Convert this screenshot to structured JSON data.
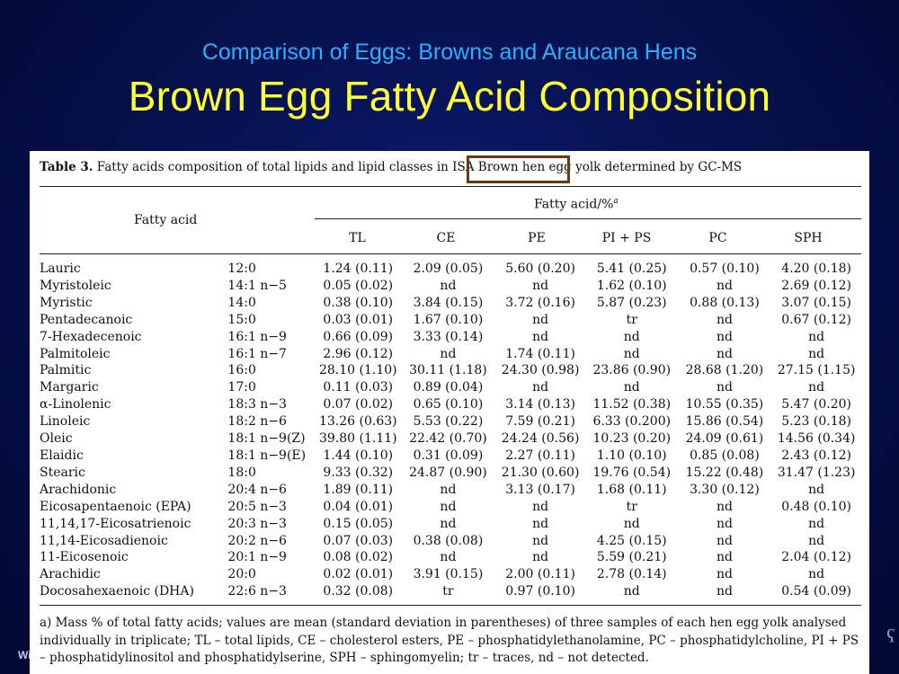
{
  "slide": {
    "subtitle": "Comparison of Eggs: Browns and Araucana Hens",
    "title": "Brown Egg Fatty Acid Composition",
    "footer_partial": "Wi"
  },
  "table": {
    "caption_label": "Table 3.",
    "caption_text": "Fatty acids composition of total lipids and lipid classes in ISA Brown hen egg yolk determined by GC-MS",
    "highlighted_phrase": "ISA Brown hen",
    "header_fatty_acid": "Fatty acid",
    "header_group": "Fatty acid/%",
    "header_group_sup": "a",
    "columns": [
      "TL",
      "CE",
      "PE",
      "PI + PS",
      "PC",
      "SPH"
    ],
    "rows": [
      {
        "name": "Lauric",
        "code": "12:0",
        "vals": [
          "1.24 (0.11)",
          "2.09 (0.05)",
          "5.60 (0.20)",
          "5.41 (0.25)",
          "0.57 (0.10)",
          "4.20 (0.18)"
        ]
      },
      {
        "name": "Myristoleic",
        "code": "14:1 n−5",
        "vals": [
          "0.05 (0.02)",
          "nd",
          "nd",
          "1.62 (0.10)",
          "nd",
          "2.69 (0.12)"
        ]
      },
      {
        "name": "Myristic",
        "code": "14:0",
        "vals": [
          "0.38 (0.10)",
          "3.84 (0.15)",
          "3.72 (0.16)",
          "5.87 (0.23)",
          "0.88 (0.13)",
          "3.07 (0.15)"
        ]
      },
      {
        "name": "Pentadecanoic",
        "code": "15:0",
        "vals": [
          "0.03 (0.01)",
          "1.67 (0.10)",
          "nd",
          "tr",
          "nd",
          "0.67 (0.12)"
        ]
      },
      {
        "name": "7-Hexadecenoic",
        "code": "16:1 n−9",
        "vals": [
          "0.66 (0.09)",
          "3.33 (0.14)",
          "nd",
          "nd",
          "nd",
          "nd"
        ]
      },
      {
        "name": "Palmitoleic",
        "code": "16:1 n−7",
        "vals": [
          "2.96 (0.12)",
          "nd",
          "1.74 (0.11)",
          "nd",
          "nd",
          "nd"
        ]
      },
      {
        "name": "Palmitic",
        "code": "16:0",
        "vals": [
          "28.10 (1.10)",
          "30.11 (1.18)",
          "24.30 (0.98)",
          "23.86 (0.90)",
          "28.68 (1.20)",
          "27.15 (1.15)"
        ]
      },
      {
        "name": "Margaric",
        "code": "17:0",
        "vals": [
          "0.11 (0.03)",
          "0.89 (0.04)",
          "nd",
          "nd",
          "nd",
          "nd"
        ]
      },
      {
        "name": "α-Linolenic",
        "code": "18:3 n−3",
        "vals": [
          "0.07 (0.02)",
          "0.65 (0.10)",
          "3.14 (0.13)",
          "11.52 (0.38)",
          "10.55 (0.35)",
          "5.47 (0.20)"
        ]
      },
      {
        "name": "Linoleic",
        "code": "18:2 n−6",
        "vals": [
          "13.26 (0.63)",
          "5.53 (0.22)",
          "7.59 (0.21)",
          "6.33 (0.200)",
          "15.86 (0.54)",
          "5.23 (0.18)"
        ]
      },
      {
        "name": "Oleic",
        "code": "18:1 n−9(Z)",
        "vals": [
          "39.80 (1.11)",
          "22.42 (0.70)",
          "24.24 (0.56)",
          "10.23 (0.20)",
          "24.09 (0.61)",
          "14.56 (0.34)"
        ]
      },
      {
        "name": "Elaidic",
        "code": "18:1 n−9(E)",
        "vals": [
          "1.44 (0.10)",
          "0.31 (0.09)",
          "2.27 (0.11)",
          "1.10 (0.10)",
          "0.85 (0.08)",
          "2.43 (0.12)"
        ]
      },
      {
        "name": "Stearic",
        "code": "18:0",
        "vals": [
          "9.33 (0.32)",
          "24.87 (0.90)",
          "21.30 (0.60)",
          "19.76 (0.54)",
          "15.22 (0.48)",
          "31.47 (1.23)"
        ]
      },
      {
        "name": "Arachidonic",
        "code": "20:4 n−6",
        "vals": [
          "1.89 (0.11)",
          "nd",
          "3.13 (0.17)",
          "1.68 (0.11)",
          "3.30 (0.12)",
          "nd"
        ]
      },
      {
        "name": "Eicosapentaenoic (EPA)",
        "code": "20:5 n−3",
        "vals": [
          "0.04 (0.01)",
          "nd",
          "nd",
          "tr",
          "nd",
          "0.48 (0.10)"
        ]
      },
      {
        "name": "11,14,17-Eicosatrienoic",
        "code": "20:3 n−3",
        "vals": [
          "0.15 (0.05)",
          "nd",
          "nd",
          "nd",
          "nd",
          "nd"
        ]
      },
      {
        "name": "11,14-Eicosadienoic",
        "code": "20:2 n−6",
        "vals": [
          "0.07 (0.03)",
          "0.38 (0.08)",
          "nd",
          "4.25 (0.15)",
          "nd",
          "nd"
        ]
      },
      {
        "name": "11-Eicosenoic",
        "code": "20:1 n−9",
        "vals": [
          "0.08 (0.02)",
          "nd",
          "nd",
          "5.59 (0.21)",
          "nd",
          "2.04 (0.12)"
        ]
      },
      {
        "name": "Arachidic",
        "code": "20:0",
        "vals": [
          "0.02 (0.01)",
          "3.91 (0.15)",
          "2.00 (0.11)",
          "2.78 (0.14)",
          "nd",
          "nd"
        ]
      },
      {
        "name": "Docosahexaenoic (DHA)",
        "code": "22:6 n−3",
        "vals": [
          "0.32 (0.08)",
          "tr",
          "0.97 (0.10)",
          "nd",
          "nd",
          "0.54 (0.09)"
        ]
      }
    ],
    "footnote": "a) Mass % of total fatty acids; values are mean (standard deviation in parentheses) of three samples of each hen egg yolk analysed individually in triplicate; TL – total lipids, CE – cholesterol esters, PE – phosphatidylethanolamine, PC – phosphatidylcholine, PI + PS – phosphatidylinositol and phosphatidylserine, SPH – sphingomyelin; tr – traces, nd – not detected."
  }
}
